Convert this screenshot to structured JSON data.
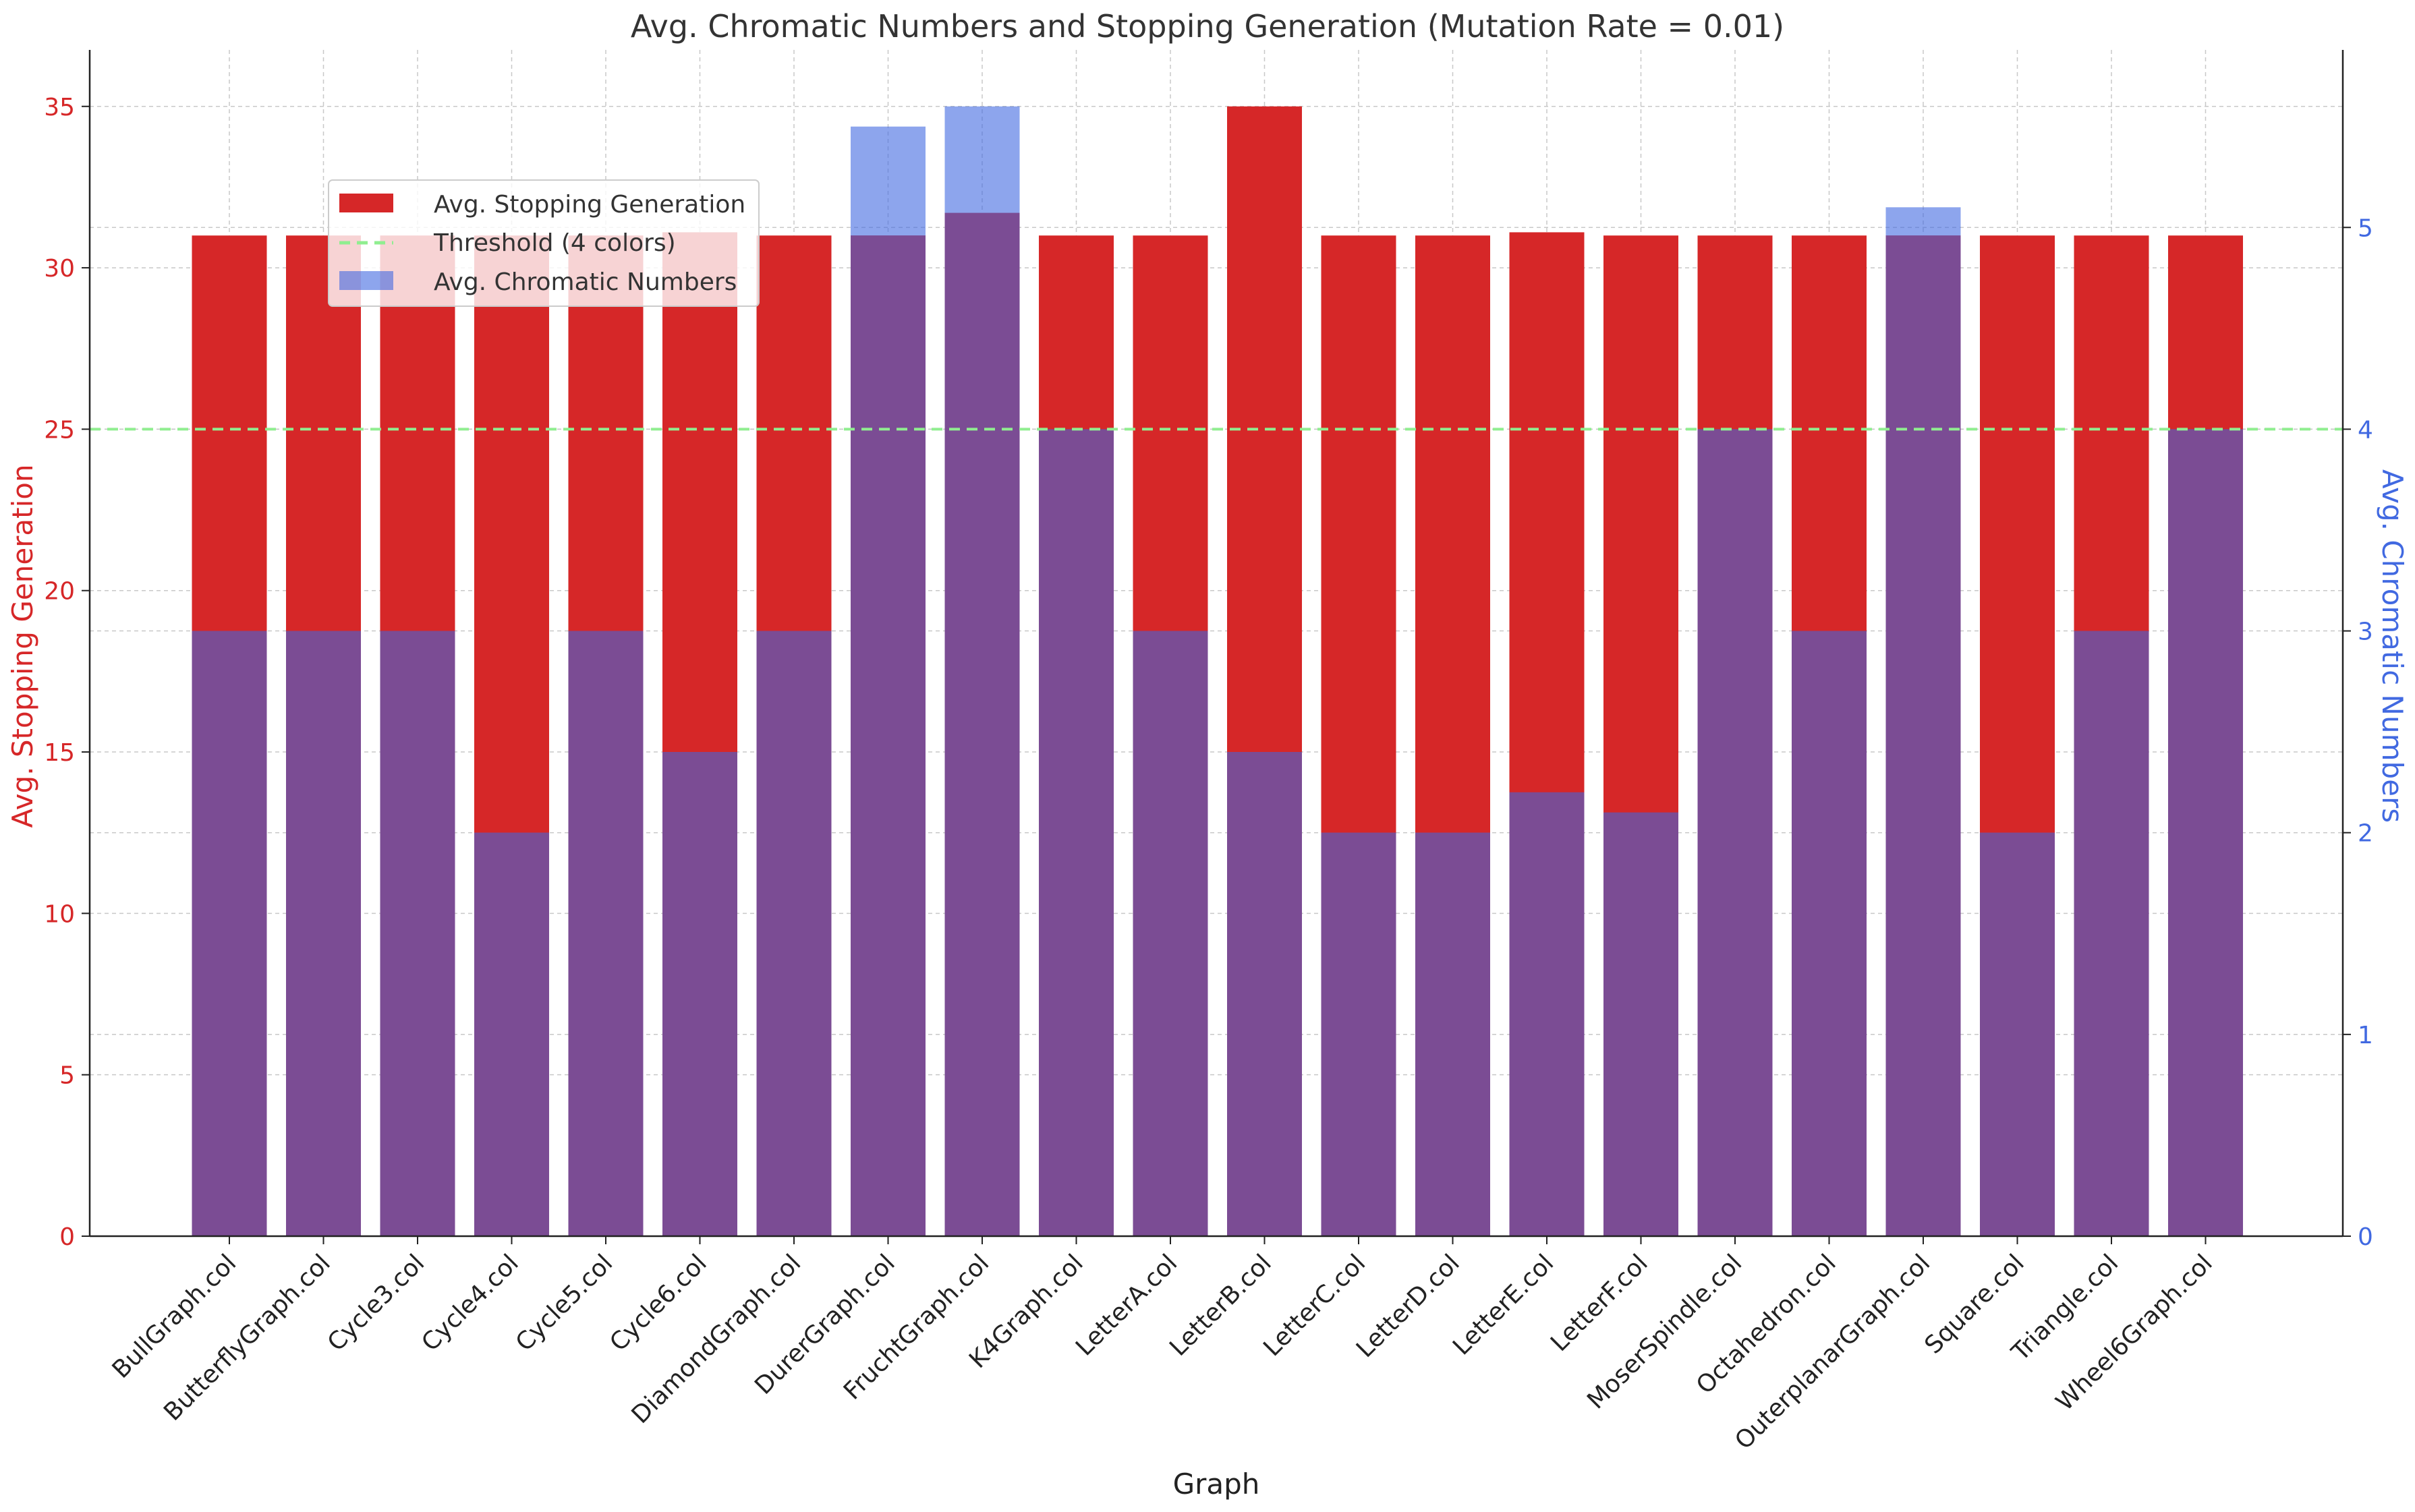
{
  "chart_data": {
    "type": "bar",
    "title": "Avg. Chromatic Numbers and Stopping Generation (Mutation Rate = 0.01)",
    "xlabel": "Graph",
    "ylabel_left": "Avg. Stopping Generation",
    "ylabel_right": "Avg. Chromatic Numbers",
    "ylim_left": [
      0,
      36.75
    ],
    "ylim_right": [
      0,
      5.88
    ],
    "yticks_left": [
      0,
      5,
      10,
      15,
      20,
      25,
      30,
      35
    ],
    "yticks_right": [
      0,
      1,
      2,
      3,
      4,
      5
    ],
    "grid": true,
    "legend_position": "upper-left",
    "categories": [
      "BullGraph.col",
      "ButterflyGraph.col",
      "Cycle3.col",
      "Cycle4.col",
      "Cycle5.col",
      "Cycle6.col",
      "DiamondGraph.col",
      "DurerGraph.col",
      "FruchtGraph.col",
      "K4Graph.col",
      "LetterA.col",
      "LetterB.col",
      "LetterC.col",
      "LetterD.col",
      "LetterE.col",
      "LetterF.col",
      "MoserSpindle.col",
      "Octahedron.col",
      "OuterplanarGraph.col",
      "Square.col",
      "Triangle.col",
      "Wheel6Graph.col"
    ],
    "series": [
      {
        "name": "Avg. Stopping Generation",
        "axis": "left",
        "color": "#d62728",
        "values": [
          31,
          31,
          31,
          31,
          31,
          31.1,
          31,
          31,
          31.7,
          31,
          31,
          35,
          31,
          31,
          31.1,
          31,
          31,
          31,
          31,
          31,
          31,
          31
        ]
      },
      {
        "name": "Avg. Chromatic Numbers",
        "axis": "right",
        "color": "#4169e1",
        "values": [
          3,
          3,
          3,
          2,
          3,
          2.4,
          3,
          5.5,
          5.6,
          4,
          3,
          2.4,
          2,
          2,
          2.2,
          2.1,
          4,
          3,
          5.1,
          2,
          3,
          4
        ]
      }
    ],
    "threshold": {
      "name": "Threshold (4 colors)",
      "value_right_axis": 4,
      "color": "#90ee90"
    },
    "overlap_color": "#7b4c94"
  }
}
